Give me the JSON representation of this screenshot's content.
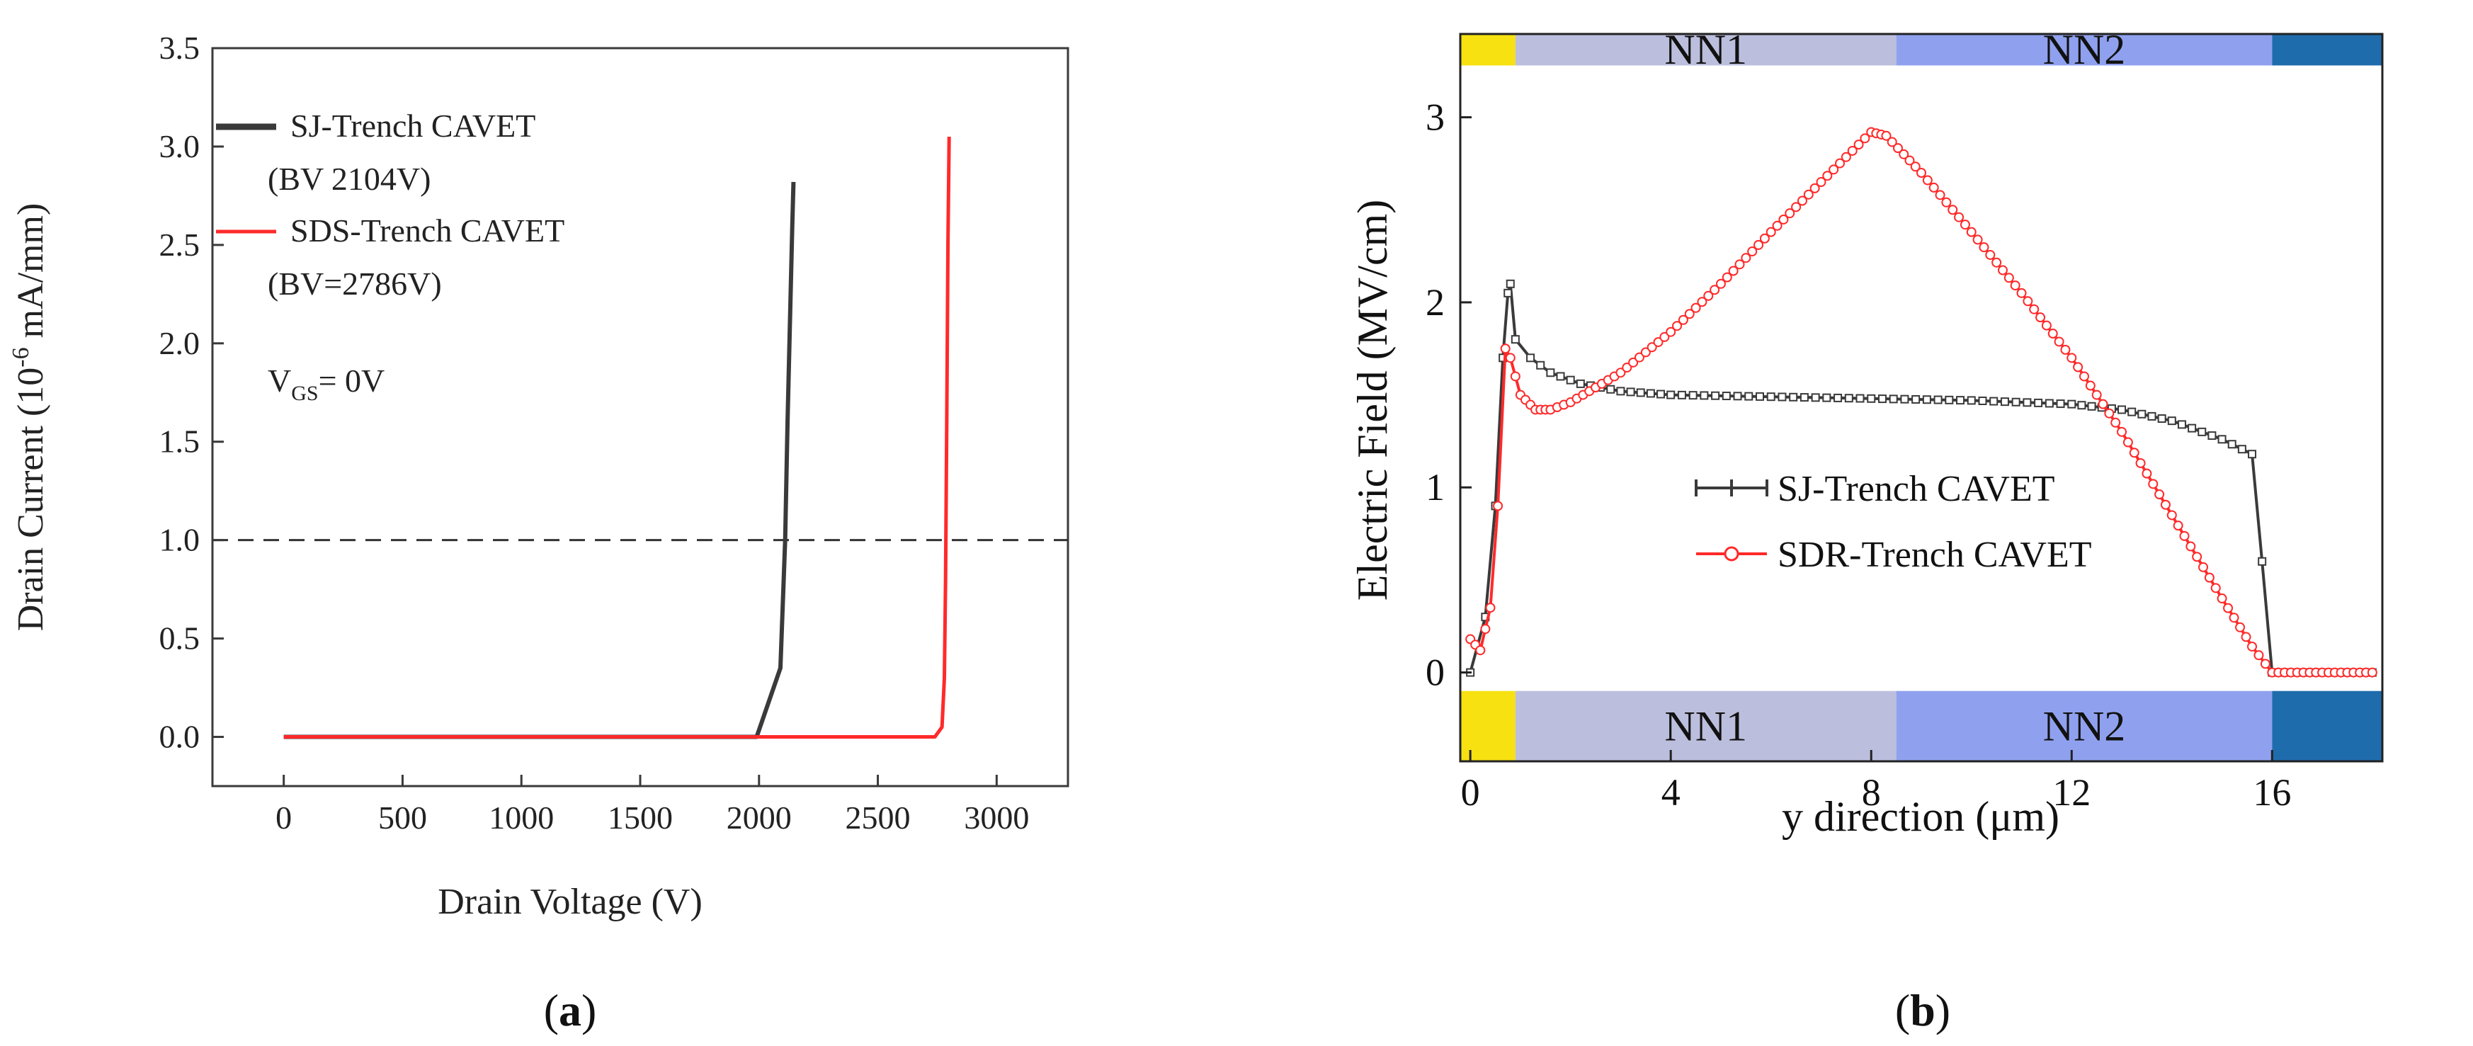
{
  "chart_data": [
    {
      "panel": "a",
      "type": "line",
      "title": "",
      "xlabel": "Drain Voltage (V)",
      "ylabel_parts": [
        "Drain Current (10",
        "-6",
        " mA/mm)"
      ],
      "xlim": [
        -300,
        3300
      ],
      "ylim": [
        -0.25,
        3.5
      ],
      "x_ticks": [
        0,
        500,
        1000,
        1500,
        2000,
        2500,
        3000
      ],
      "x_tick_labels": [
        "0",
        "500",
        "1000",
        "1500",
        "2000",
        "2500",
        "3000"
      ],
      "y_ticks": [
        0.0,
        0.5,
        1.0,
        1.5,
        2.0,
        2.5,
        3.0,
        3.5
      ],
      "y_tick_labels": [
        "0.0",
        "0.5",
        "1.0",
        "1.5",
        "2.0",
        "2.5",
        "3.0",
        "3.5"
      ],
      "reference_line": {
        "y": 1.0,
        "style": "dashed",
        "color": "#333333"
      },
      "series": [
        {
          "name": "SJ-Trench CAVET",
          "note": "(BV  2104V)",
          "color": "#3a3a3a",
          "x": [
            0,
            1990,
            2090,
            2110,
            2120,
            2140,
            2145
          ],
          "y": [
            0,
            0,
            0.35,
            1.0,
            1.6,
            2.6,
            2.82
          ]
        },
        {
          "name": "SDS-Trench CAVET",
          "note": "(BV=2786V)",
          "color": "#ff2a2a",
          "x": [
            0,
            2740,
            2770,
            2780,
            2785,
            2790,
            2795,
            2800
          ],
          "y": [
            0,
            0,
            0.05,
            0.3,
            0.8,
            1.6,
            2.5,
            3.05
          ]
        }
      ],
      "annotation": {
        "main": "V",
        "sub": "GS",
        "rest": "= 0V"
      },
      "panel_label": {
        "open": "(",
        "letter": "a",
        "close": ")"
      }
    },
    {
      "panel": "b",
      "type": "line",
      "title": "",
      "xlabel": "y direction (μm)",
      "ylabel": "Electric Field  (MV/cm)",
      "xlim": [
        -0.2,
        18.2
      ],
      "ylim": [
        -0.48,
        3.45
      ],
      "x_ticks": [
        0,
        4,
        8,
        12,
        16
      ],
      "x_tick_labels": [
        "0",
        "4",
        "8",
        "12",
        "16"
      ],
      "y_ticks": [
        0,
        1,
        2,
        3
      ],
      "y_tick_labels": [
        "0",
        "1",
        "2",
        "3"
      ],
      "region_bands": [
        {
          "label": "",
          "from": -0.2,
          "to": 0.9,
          "color": "#f7e111"
        },
        {
          "label": "NN1",
          "from": 0.9,
          "to": 8.5,
          "color": "#bcbedd"
        },
        {
          "label": "NN2",
          "from": 8.5,
          "to": 16.0,
          "color": "#8fa1ee"
        },
        {
          "label": "",
          "from": 16.0,
          "to": 18.2,
          "color": "#1f6cad"
        }
      ],
      "series": [
        {
          "name": "SJ-Trench CAVET",
          "color": "#3a3a3a",
          "marker": "square",
          "x": [
            0,
            0.3,
            0.5,
            0.65,
            0.75,
            0.8,
            0.9,
            1.2,
            1.6,
            2.2,
            3.0,
            4.0,
            6.0,
            8.0,
            10.0,
            12.0,
            13.0,
            14.0,
            15.0,
            15.6,
            15.8,
            16.0,
            16.5,
            17.0,
            18.0
          ],
          "y": [
            0.0,
            0.3,
            0.9,
            1.7,
            2.05,
            2.1,
            1.8,
            1.7,
            1.62,
            1.56,
            1.52,
            1.5,
            1.49,
            1.48,
            1.47,
            1.45,
            1.42,
            1.36,
            1.26,
            1.18,
            0.6,
            0.0,
            0.0,
            0.0,
            0.0
          ]
        },
        {
          "name": "SDR-Trench CAVET",
          "color": "#ff2a2a",
          "marker": "circle",
          "x": [
            0,
            0.2,
            0.4,
            0.55,
            0.7,
            0.8,
            1.0,
            1.3,
            1.6,
            2.0,
            3.0,
            4.0,
            5.0,
            6.0,
            7.0,
            8.0,
            8.3,
            9.0,
            10.0,
            11.0,
            12.0,
            13.0,
            14.0,
            15.0,
            15.6,
            16.0,
            16.5,
            17.0,
            18.0
          ],
          "y": [
            0.18,
            0.12,
            0.35,
            0.9,
            1.75,
            1.7,
            1.5,
            1.42,
            1.42,
            1.46,
            1.62,
            1.84,
            2.1,
            2.38,
            2.65,
            2.92,
            2.9,
            2.7,
            2.38,
            2.05,
            1.7,
            1.3,
            0.85,
            0.4,
            0.14,
            0.0,
            0.0,
            0.0,
            0.0
          ]
        }
      ],
      "panel_label": {
        "open": "(",
        "letter": "b",
        "close": ")"
      }
    }
  ]
}
